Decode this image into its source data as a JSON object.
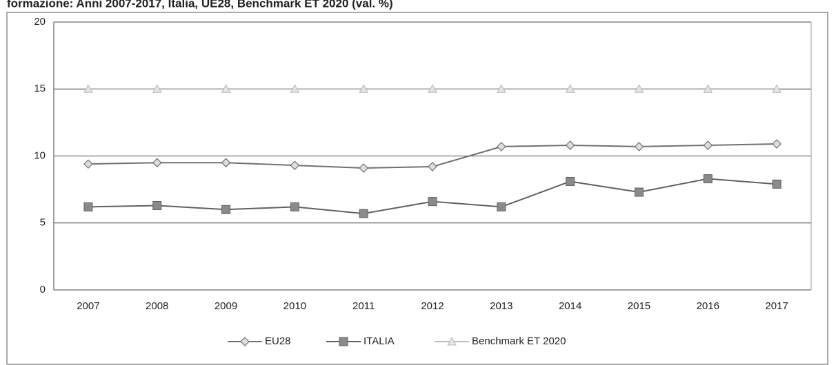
{
  "chart_data": {
    "type": "line",
    "title": "formazione: Anni 2007-2017, Italia, UE28, Benchmark ET 2020 (val. %)",
    "categories": [
      "2007",
      "2008",
      "2009",
      "2010",
      "2011",
      "2012",
      "2013",
      "2014",
      "2015",
      "2016",
      "2017"
    ],
    "series": [
      {
        "name": "EU28",
        "color": "#707070",
        "marker": "diamond",
        "values": [
          9.4,
          9.5,
          9.5,
          9.3,
          9.1,
          9.2,
          10.7,
          10.8,
          10.7,
          10.8,
          10.9
        ]
      },
      {
        "name": "ITALIA",
        "color": "#606060",
        "marker": "square",
        "values": [
          6.2,
          6.3,
          6.0,
          6.2,
          5.7,
          6.6,
          6.2,
          8.1,
          7.3,
          8.3,
          7.9
        ]
      },
      {
        "name": "Benchmark ET 2020",
        "color": "#b8b8b8",
        "marker": "triangle",
        "values": [
          15,
          15,
          15,
          15,
          15,
          15,
          15,
          15,
          15,
          15,
          15
        ]
      }
    ],
    "ylim": [
      0,
      20
    ],
    "yticks": [
      0,
      5,
      10,
      15,
      20
    ],
    "grid": true,
    "legend": "bottom"
  }
}
